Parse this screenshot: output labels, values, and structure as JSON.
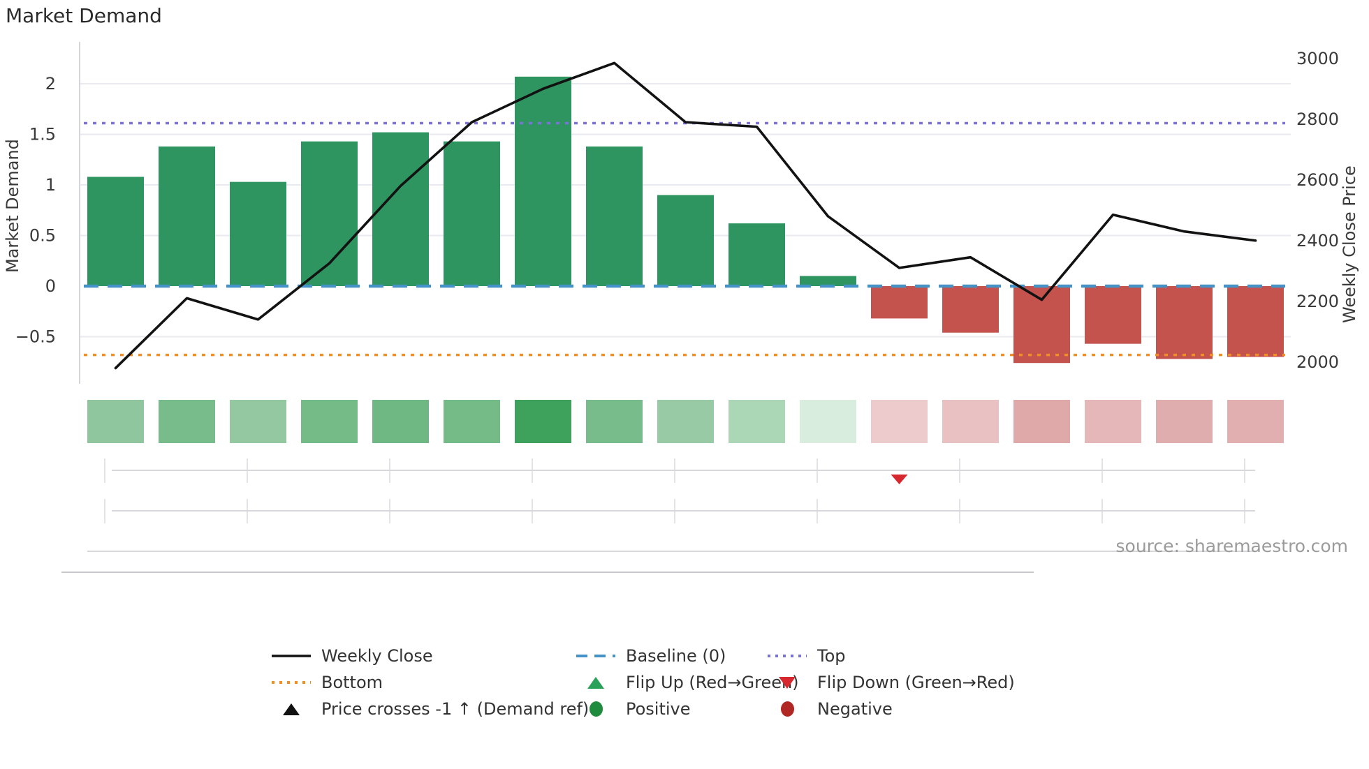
{
  "title": "Market Demand",
  "source_credit": "source: sharemaestro.com",
  "left_axis": {
    "label": "Market Demand",
    "ticks": [
      "2",
      "1.5",
      "1",
      "0.5",
      "0",
      "−0.5"
    ],
    "tick_values": [
      2,
      1.5,
      1,
      0.5,
      0,
      -0.5
    ]
  },
  "right_axis": {
    "label": "Weekly Close Price",
    "ticks": [
      "3000",
      "2800",
      "2600",
      "2400",
      "2200",
      "2000"
    ],
    "tick_values": [
      3000,
      2800,
      2600,
      2400,
      2200,
      2000
    ]
  },
  "chart_data": {
    "type": "bar+line",
    "x": [
      1,
      2,
      3,
      4,
      5,
      6,
      7,
      8,
      9,
      10,
      11,
      12,
      13,
      14,
      15,
      16,
      17
    ],
    "series": [
      {
        "name": "Market Demand",
        "type": "bar",
        "axis": "left",
        "values": [
          1.08,
          1.38,
          1.03,
          1.43,
          1.52,
          1.43,
          2.07,
          1.38,
          0.9,
          0.62,
          0.1,
          -0.32,
          -0.46,
          -0.76,
          -0.57,
          -0.72,
          -0.7
        ]
      },
      {
        "name": "Weekly Close",
        "type": "line",
        "axis": "right",
        "values": [
          1980,
          2210,
          2140,
          2325,
          2580,
          2790,
          2900,
          2985,
          2790,
          2775,
          2480,
          2310,
          2345,
          2205,
          2485,
          2430,
          2400
        ]
      }
    ],
    "reference_lines": {
      "baseline": 0,
      "top": 1.61,
      "bottom": -0.68
    },
    "left_ylim": [
      -0.95,
      2.42
    ],
    "right_ylim": [
      1930,
      3055
    ],
    "grid": true,
    "legend_position": "bottom",
    "heatmap": {
      "colors": [
        "#8fc69e",
        "#79bc8b",
        "#93c8a1",
        "#75bb88",
        "#6fb883",
        "#75bb88",
        "#3ea25d",
        "#79bc8b",
        "#98cba5",
        "#abd7b6",
        "#d8eddd",
        "#edcbcc",
        "#e9c1c2",
        "#dfa9aa",
        "#e5b7b8",
        "#e0adae",
        "#e1afb0"
      ]
    },
    "markers": {
      "flip_down_x_index": 12,
      "flip_up_x_index": null,
      "price_cross_x_index": null
    }
  },
  "colors": {
    "bar_positive": "#2f9560",
    "bar_negative": "#c4524d",
    "price_line": "#121212",
    "baseline": "#4593c6",
    "top_line": "#7b72d6",
    "bottom_line": "#ef8f25",
    "flip_down_marker": "#d7282f",
    "grid": "#e9e9f0"
  },
  "legend": {
    "columns": [
      {
        "items": [
          {
            "label": "Weekly Close",
            "swatch": "solid-line",
            "color": "#121212"
          },
          {
            "label": "Bottom",
            "swatch": "dotted-line",
            "color": "#ef8f25"
          },
          {
            "label": "Price crosses -1 ↑ (Demand ref)",
            "swatch": "triangle-up",
            "color": "#111111"
          }
        ]
      },
      {
        "items": [
          {
            "label": "Baseline (0)",
            "swatch": "dashed-line",
            "color": "#4593c6"
          },
          {
            "label": "Flip Up (Red→Green)",
            "swatch": "triangle-up",
            "color": "#2aa158"
          },
          {
            "label": "Positive",
            "swatch": "circle",
            "color": "#1f8b3c"
          }
        ]
      },
      {
        "items": [
          {
            "label": "Top",
            "swatch": "dotted-line",
            "color": "#7b72d6"
          },
          {
            "label": "Flip Down (Green→Red)",
            "swatch": "triangle-down",
            "color": "#d7282f"
          },
          {
            "label": "Negative",
            "swatch": "circle",
            "color": "#b02723"
          }
        ]
      }
    ]
  }
}
